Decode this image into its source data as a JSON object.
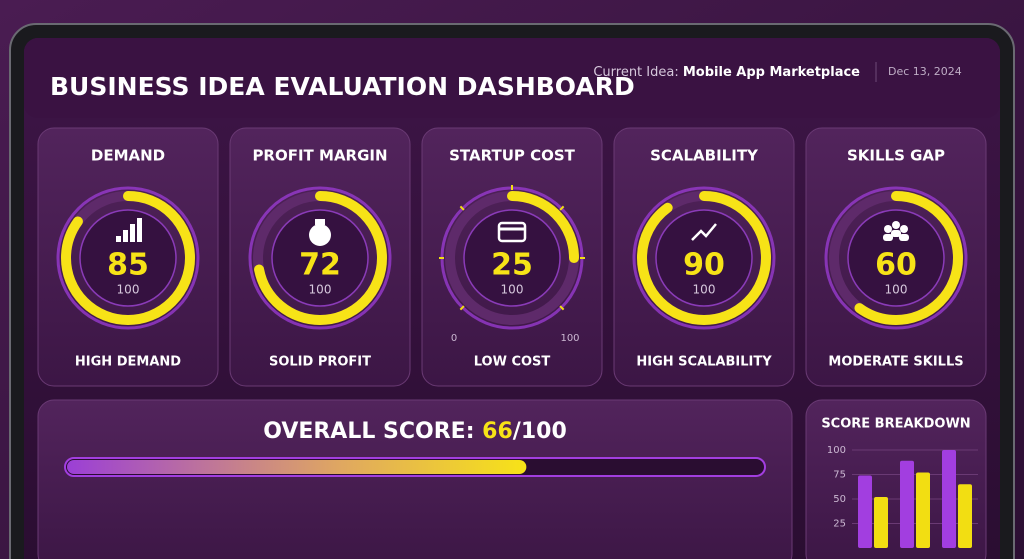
{
  "header": {
    "title": "BUSINESS IDEA EVALUATION DASHBOARD",
    "idea_label": "Current Idea:",
    "idea_value": "Mobile App Marketplace",
    "date": "Dec 13, 2024"
  },
  "cards": [
    {
      "title": "DEMAND",
      "value": 85,
      "max": 100,
      "caption": "HIGH DEMAND"
    },
    {
      "title": "PROFIT MARGIN",
      "value": 72,
      "max": 100,
      "caption": "SOLID PROFIT"
    },
    {
      "title": "STARTUP COST",
      "value": 25,
      "max": 100,
      "caption": "LOW COST",
      "scale": [
        0,
        100
      ]
    },
    {
      "title": "SCALABILITY",
      "value": 90,
      "max": 100,
      "caption": "HIGH SCALABILITY"
    },
    {
      "title": "SKILLS GAP",
      "value": 60,
      "max": 100,
      "caption": "MODERATE SKILLS"
    }
  ],
  "overall": {
    "label": "OVERALL SCORE:",
    "value": 66,
    "separator": "/",
    "max": 100
  },
  "chart_data": {
    "type": "bar",
    "title": "SCORE BREAKDOWN",
    "categories": [
      null,
      null,
      null
    ],
    "series": [
      {
        "color": "#a23ee0",
        "values": [
          74,
          89,
          100
        ]
      },
      {
        "color": "#f2de12",
        "values": [
          52,
          77,
          65
        ]
      }
    ],
    "ylim": [
      0,
      100
    ],
    "yticks": [
      25,
      50,
      75,
      100
    ],
    "grid": true
  }
}
